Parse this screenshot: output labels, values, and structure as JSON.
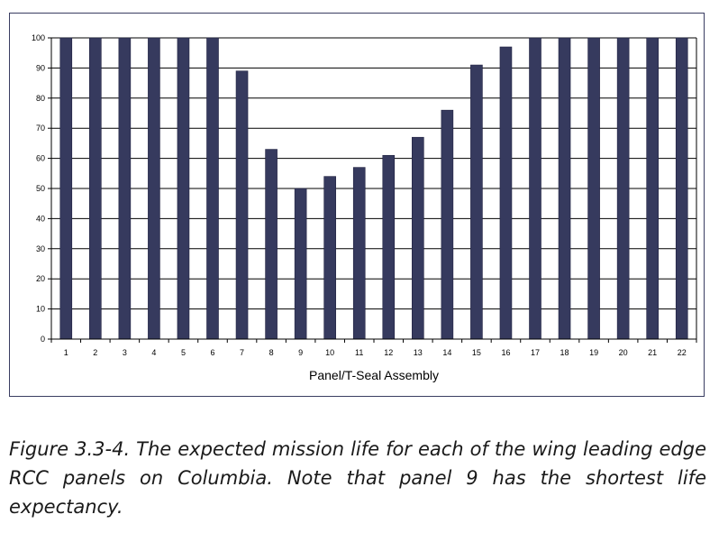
{
  "chart_data": {
    "type": "bar",
    "categories": [
      "1",
      "2",
      "3",
      "4",
      "5",
      "6",
      "7",
      "8",
      "9",
      "10",
      "11",
      "12",
      "13",
      "14",
      "15",
      "16",
      "17",
      "18",
      "19",
      "20",
      "21",
      "22"
    ],
    "values": [
      100,
      100,
      100,
      100,
      100,
      100,
      89,
      63,
      50,
      54,
      57,
      61,
      67,
      76,
      91,
      97,
      100,
      100,
      100,
      100,
      100,
      100
    ],
    "xlabel": "Panel/T-Seal Assembly",
    "ylabel": "",
    "ylim": [
      0,
      100
    ],
    "yticks": [
      0,
      10,
      20,
      30,
      40,
      50,
      60,
      70,
      80,
      90,
      100
    ],
    "grid": true,
    "bar_color": "#363a5e"
  },
  "caption": "Figure 3.3-4. The expected mission life for each of the wing leading edge RCC panels on Columbia. Note that panel 9 has the shortest life expectancy."
}
